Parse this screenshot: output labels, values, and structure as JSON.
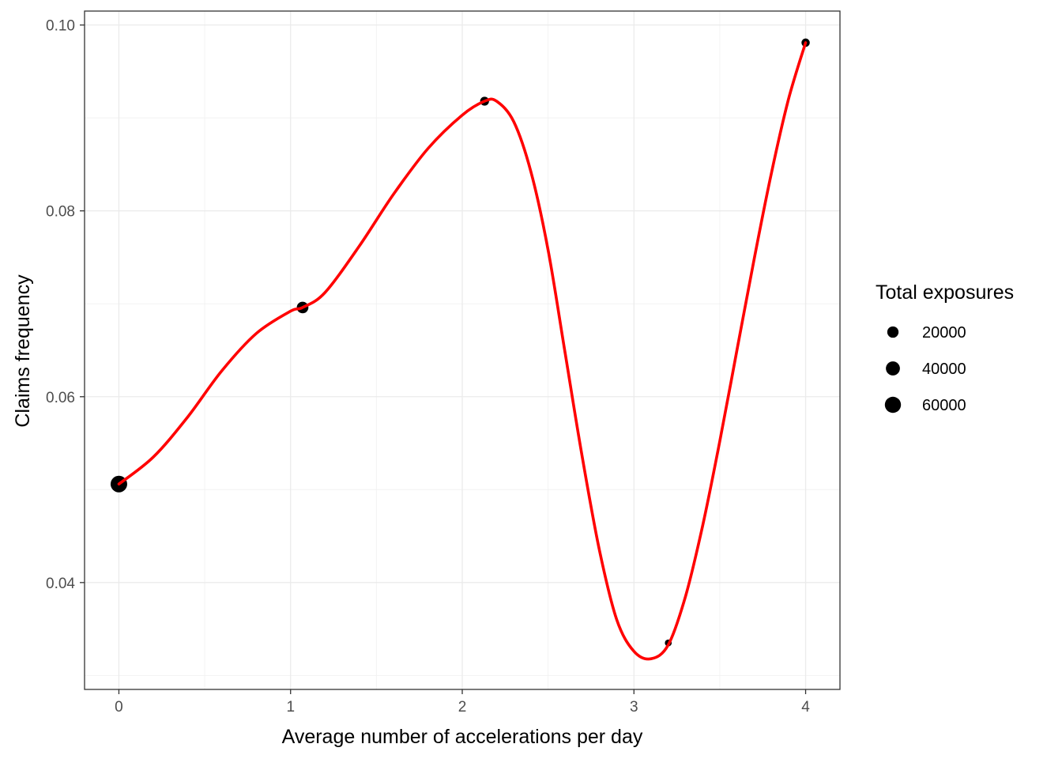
{
  "chart_data": {
    "type": "scatter",
    "xlabel": "Average number of accelerations per day",
    "ylabel": "Claims frequency",
    "xlim": [
      -0.2,
      4.2
    ],
    "ylim": [
      0.0285,
      0.1015
    ],
    "x_ticks": [
      0,
      1,
      2,
      3,
      4
    ],
    "x_tick_labels": [
      "0",
      "1",
      "2",
      "3",
      "4"
    ],
    "y_ticks": [
      0.04,
      0.06,
      0.08,
      0.1
    ],
    "y_tick_labels": [
      "0.04",
      "0.06",
      "0.08",
      "0.10"
    ],
    "grid": true,
    "points": [
      {
        "x": 0.0,
        "y": 0.0506,
        "exposure": 65000
      },
      {
        "x": 1.07,
        "y": 0.0696,
        "exposure": 22000
      },
      {
        "x": 2.13,
        "y": 0.0918,
        "exposure": 8000
      },
      {
        "x": 3.2,
        "y": 0.0335,
        "exposure": 2000
      },
      {
        "x": 4.0,
        "y": 0.0981,
        "exposure": 6000
      }
    ],
    "smooth_line": {
      "color": "#ff0000",
      "x": [
        0.0,
        0.2,
        0.4,
        0.6,
        0.8,
        1.0,
        1.07,
        1.2,
        1.4,
        1.6,
        1.8,
        2.0,
        2.13,
        2.2,
        2.3,
        2.4,
        2.5,
        2.6,
        2.7,
        2.8,
        2.9,
        3.0,
        3.1,
        3.2,
        3.3,
        3.4,
        3.5,
        3.6,
        3.7,
        3.8,
        3.9,
        4.0
      ],
      "y": [
        0.0506,
        0.0535,
        0.0578,
        0.0628,
        0.0668,
        0.0692,
        0.0696,
        0.0712,
        0.0762,
        0.0818,
        0.0867,
        0.0903,
        0.0918,
        0.0918,
        0.0896,
        0.0842,
        0.0758,
        0.0646,
        0.0534,
        0.0434,
        0.036,
        0.0326,
        0.0318,
        0.0333,
        0.0385,
        0.0461,
        0.0552,
        0.065,
        0.0748,
        0.084,
        0.092,
        0.0981
      ]
    },
    "legend": {
      "title": "Total exposures",
      "position": "right",
      "entries": [
        {
          "label": "20000",
          "exposure": 20000
        },
        {
          "label": "40000",
          "exposure": 40000
        },
        {
          "label": "60000",
          "exposure": 60000
        }
      ]
    }
  }
}
